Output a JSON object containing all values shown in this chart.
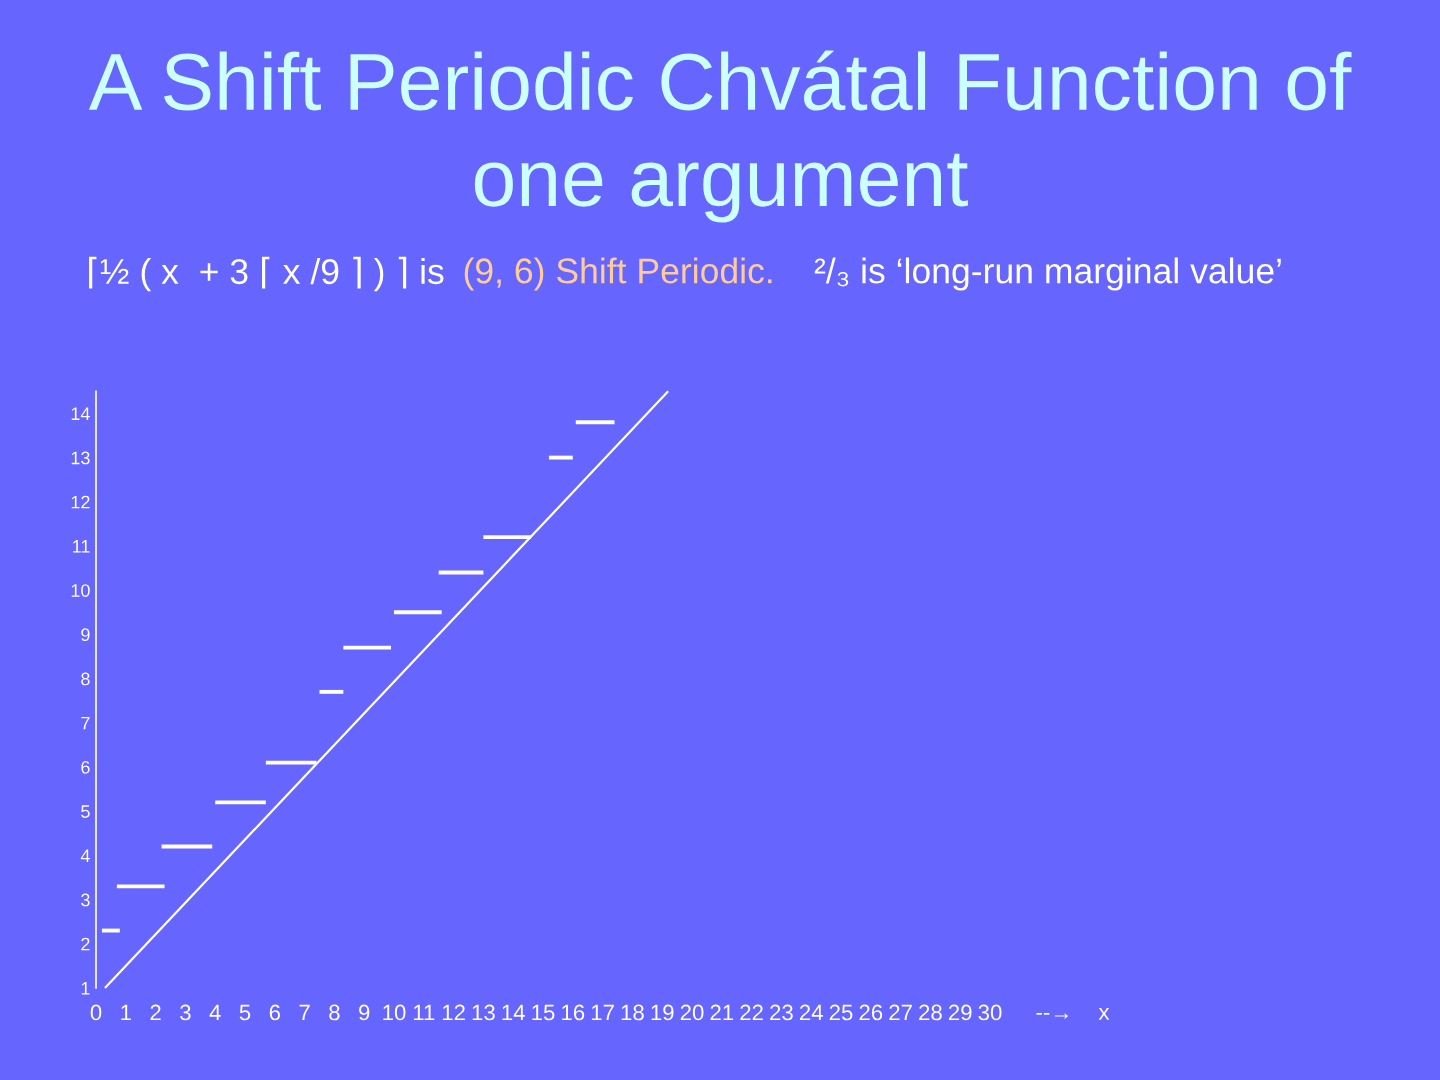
{
  "chart_data": {
    "type": "line",
    "title": "A Shift Periodic Chvátal Function of\none argument",
    "subtitle": "⌈½ ( x  + 3 ⌈ x /9 ⌉ ) ⌉ is",
    "annotations": [
      "(9, 6) Shift Periodic.",
      "²/₃ is ‘long-run marginal value’",
      "--→"
    ],
    "xlabel": "x",
    "xlim": [
      0,
      30
    ],
    "xticks": [
      0,
      1,
      2,
      3,
      4,
      5,
      6,
      7,
      8,
      9,
      10,
      11,
      12,
      13,
      14,
      15,
      16,
      17,
      18,
      19,
      20,
      21,
      22,
      23,
      24,
      25,
      26,
      27,
      28,
      29,
      30
    ],
    "ylim": [
      1,
      14.5
    ],
    "yticks": [
      1,
      2,
      3,
      4,
      5,
      6,
      7,
      8,
      9,
      10,
      11,
      12,
      13,
      14
    ],
    "series": [
      {
        "color": "#ffffff",
        "x": [
          0.3,
          19.2
        ],
        "values": [
          1.0,
          14.5
        ]
      },
      {
        "color": "#ffffff",
        "x": [
          0.2,
          0.8
        ],
        "values": [
          2.3,
          2.3
        ]
      },
      {
        "color": "#ffffff",
        "x": [
          0.7,
          2.3
        ],
        "values": [
          3.3,
          3.3
        ]
      },
      {
        "color": "#ffffff",
        "x": [
          2.2,
          3.9
        ],
        "values": [
          4.2,
          4.2
        ]
      },
      {
        "color": "#ffffff",
        "x": [
          4.0,
          5.7
        ],
        "values": [
          5.2,
          5.2
        ]
      },
      {
        "color": "#ffffff",
        "x": [
          5.7,
          7.4
        ],
        "values": [
          6.1,
          6.1
        ]
      },
      {
        "color": "#ffffff",
        "x": [
          7.5,
          8.3
        ],
        "values": [
          7.7,
          7.7
        ]
      },
      {
        "color": "#ffffff",
        "x": [
          8.3,
          9.9
        ],
        "values": [
          8.7,
          8.7
        ]
      },
      {
        "color": "#ffffff",
        "x": [
          10.0,
          11.6
        ],
        "values": [
          9.5,
          9.5
        ]
      },
      {
        "color": "#ffffff",
        "x": [
          11.5,
          13.0
        ],
        "values": [
          10.4,
          10.4
        ]
      },
      {
        "color": "#ffffff",
        "x": [
          13.0,
          14.6
        ],
        "values": [
          11.2,
          11.2
        ]
      },
      {
        "color": "#ffffff",
        "x": [
          15.2,
          16.0
        ],
        "values": [
          13.0,
          13.0
        ]
      },
      {
        "color": "#ffffff",
        "x": [
          16.1,
          17.4
        ],
        "values": [
          13.8,
          13.8
        ]
      }
    ]
  }
}
